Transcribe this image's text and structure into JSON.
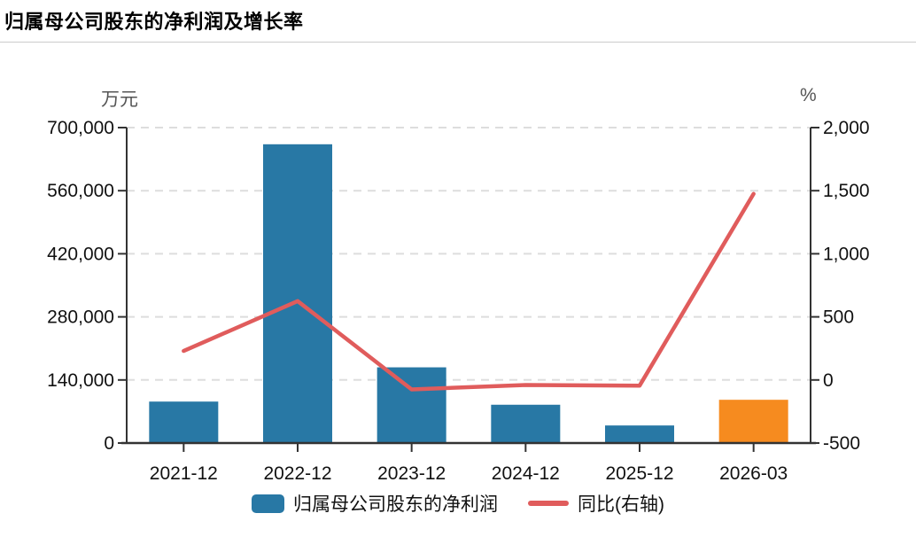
{
  "page": {
    "title": "归属母公司股东的净利润及增长率"
  },
  "axes": {
    "left_unit": "万元",
    "right_unit": "%"
  },
  "legend": {
    "bar_label": "归属母公司股东的净利润",
    "line_label": "同比(右轴)"
  },
  "colors": {
    "bar": "#2878a5",
    "bar_highlight": "#f68b1f",
    "line": "#e05c5c",
    "axis": "#333333",
    "grid": "#dddddd",
    "tick_text": "#111111",
    "divider": "#cccccc",
    "unit_text": "#555555"
  },
  "chart_data": {
    "type": "bar",
    "title": "归属母公司股东的净利润及增长率",
    "categories": [
      "2021-12",
      "2022-12",
      "2023-12",
      "2024-12",
      "2025-12",
      "2026-03"
    ],
    "series": [
      {
        "name": "归属母公司股东的净利润",
        "type": "bar",
        "axis": "left",
        "values": [
          92000,
          663000,
          168000,
          85000,
          39000,
          96000
        ],
        "bar_colors": [
          "#2878a5",
          "#2878a5",
          "#2878a5",
          "#2878a5",
          "#2878a5",
          "#f68b1f"
        ]
      },
      {
        "name": "同比(右轴)",
        "type": "line",
        "axis": "right",
        "values": [
          230,
          625,
          -75,
          -40,
          -45,
          1475
        ]
      }
    ],
    "left_axis": {
      "unit": "万元",
      "min": 0,
      "max": 700000,
      "ticks": [
        0,
        140000,
        280000,
        420000,
        560000,
        700000
      ],
      "tick_labels": [
        "0",
        "140,000",
        "280,000",
        "420,000",
        "560,000",
        "700,000"
      ]
    },
    "right_axis": {
      "unit": "%",
      "min": -500,
      "max": 2000,
      "ticks": [
        -500,
        0,
        500,
        1000,
        1500,
        2000
      ],
      "tick_labels": [
        "-500",
        "0",
        "500",
        "1,000",
        "1,500",
        "2,000"
      ]
    },
    "grid": "horizontal-dashed",
    "legend_position": "bottom"
  }
}
